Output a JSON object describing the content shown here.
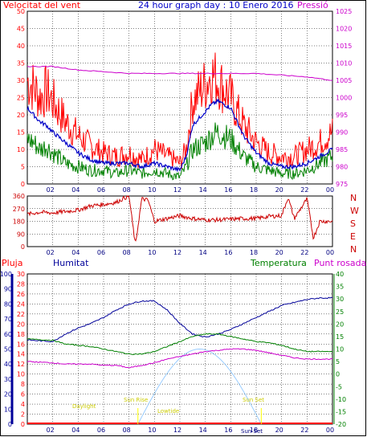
{
  "colors": {
    "background": "#ffffff",
    "frame": "#000000",
    "grid": "#000000",
    "wind_avg": "#0000c8",
    "wind_gust": "#ff0000",
    "wind_speed": "#008000",
    "pressure": "#cc00cc",
    "direction": "#cc0000",
    "humidity": "#000099",
    "temperature": "#008000",
    "dewpoint": "#cc00cc",
    "rain": "#ff0000",
    "sun_curve": "#99ccff",
    "events": "#ffff00",
    "sun_set_label": "#000080"
  },
  "header": {
    "wind_label": "Velocitat del vent",
    "title": "24 hour graph day : 10 Enero 2016",
    "pressure_label": "Pressió"
  },
  "legend2": {
    "rain": "Pluja",
    "humidity": "Humitat",
    "temperature": "Temperatura",
    "dewpoint": "Punt rosada"
  },
  "dir_letters": [
    "N",
    "W",
    "S",
    "E",
    "N"
  ],
  "events": {
    "daylight": "Daylight",
    "sunrise": "Sun Rise",
    "lowtide": "Lowtide",
    "sunset": "Sun Set",
    "sunset2": "Sun Set"
  },
  "chart_data": [
    {
      "type": "line",
      "title": "24 hour graph day : 10 Enero 2016",
      "x_ticks": [
        "02",
        "04",
        "06",
        "08",
        "10",
        "12",
        "14",
        "16",
        "18",
        "20",
        "22",
        "00"
      ],
      "y_left_label": "Velocitat del vent",
      "y_left_ticks": [
        0,
        5,
        10,
        15,
        20,
        25,
        30,
        35,
        40,
        45,
        50
      ],
      "y_left_range": [
        0,
        50
      ],
      "y_right_label": "Pressió",
      "y_right_ticks": [
        975,
        980,
        985,
        990,
        995,
        1000,
        1005,
        1010,
        1015,
        1020,
        1025
      ],
      "y_right_range": [
        975,
        1025
      ],
      "grid": true,
      "series": [
        {
          "key": "gust",
          "axis": "left",
          "x": [
            0,
            0.5,
            1,
            1.5,
            2,
            3,
            4,
            5,
            6,
            7,
            8,
            9,
            10,
            11,
            12,
            12.5,
            13,
            14,
            14.5,
            15,
            16,
            17,
            18,
            19,
            20,
            21,
            22,
            23,
            24
          ],
          "values": [
            30,
            28,
            25,
            27,
            24,
            18,
            14,
            11,
            9,
            8,
            9,
            7,
            10,
            8,
            6,
            10,
            24,
            29,
            32,
            30,
            25,
            17,
            12,
            9,
            8,
            8,
            10,
            12,
            15
          ]
        },
        {
          "key": "average",
          "axis": "left",
          "x": [
            0,
            0.5,
            1,
            1.5,
            2,
            3,
            4,
            5,
            6,
            7,
            8,
            9,
            10,
            11,
            12,
            12.5,
            13,
            14,
            14.5,
            15,
            16,
            17,
            18,
            19,
            20,
            21,
            22,
            23,
            24
          ],
          "values": [
            22,
            20,
            18,
            17,
            15,
            12,
            9,
            7,
            6,
            6,
            6,
            5,
            6,
            5,
            4,
            8,
            17,
            21,
            23,
            24,
            22,
            14,
            9,
            6,
            5,
            5,
            6,
            8,
            10
          ]
        },
        {
          "key": "speed",
          "axis": "left",
          "x": [
            0,
            0.5,
            1,
            1.5,
            2,
            3,
            4,
            5,
            6,
            7,
            8,
            9,
            10,
            11,
            12,
            12.5,
            13,
            14,
            14.5,
            15,
            16,
            17,
            18,
            19,
            20,
            21,
            22,
            23,
            24
          ],
          "values": [
            13,
            12,
            10,
            11,
            9,
            6,
            5,
            4,
            4,
            3,
            4,
            3,
            4,
            3,
            2,
            5,
            10,
            12,
            14,
            15,
            13,
            8,
            5,
            4,
            3,
            3,
            4,
            6,
            8
          ]
        },
        {
          "key": "pressure",
          "axis": "right",
          "x": [
            0,
            2,
            4,
            6,
            8,
            10,
            12,
            14,
            16,
            18,
            20,
            22,
            24
          ],
          "values": [
            1009,
            1009,
            1008,
            1007.5,
            1007,
            1007,
            1007,
            1007,
            1007,
            1007,
            1006.5,
            1006,
            1005
          ]
        }
      ]
    },
    {
      "type": "line",
      "y_ticks": [
        0,
        90,
        180,
        270,
        360
      ],
      "y_range": [
        0,
        360
      ],
      "x_ticks": [
        "02",
        "04",
        "06",
        "08",
        "10",
        "12",
        "14",
        "16",
        "18",
        "20",
        "22",
        "00"
      ],
      "series": [
        {
          "key": "direction",
          "x": [
            0,
            1,
            2,
            3,
            4,
            5,
            6,
            7,
            7.5,
            8,
            8.5,
            9,
            9.5,
            10,
            11,
            12,
            13,
            14,
            15,
            16,
            17,
            18,
            19,
            20,
            20.5,
            21,
            22,
            22.5,
            23,
            24
          ],
          "values": [
            230,
            245,
            240,
            250,
            260,
            290,
            300,
            315,
            340,
            360,
            10,
            340,
            330,
            180,
            200,
            220,
            200,
            190,
            190,
            195,
            200,
            200,
            215,
            220,
            350,
            200,
            340,
            60,
            180,
            180
          ]
        }
      ]
    },
    {
      "type": "line",
      "legend": [
        "Pluja",
        "Humitat",
        "Temperatura",
        "Punt rosada"
      ],
      "y_rain_ticks": [
        0,
        2,
        4,
        6,
        8,
        10,
        12,
        14,
        16,
        18,
        20,
        22,
        24,
        26,
        28,
        30
      ],
      "y_rain_range": [
        0,
        30
      ],
      "y_humidity_ticks": [
        0,
        10,
        20,
        30,
        40,
        50,
        60,
        70,
        80,
        90,
        100
      ],
      "y_humidity_range": [
        0,
        100
      ],
      "y_temp_ticks": [
        -20,
        -15,
        -10,
        -5,
        0,
        5,
        10,
        15,
        20,
        25,
        30,
        35,
        40
      ],
      "y_temp_range": [
        -20,
        40
      ],
      "x_ticks": [
        "02",
        "04",
        "06",
        "08",
        "10",
        "12",
        "14",
        "16",
        "18",
        "20",
        "22",
        "00"
      ],
      "series": [
        {
          "key": "humidity",
          "axis": "humidity",
          "x": [
            0,
            2,
            3,
            4,
            5,
            6,
            7,
            8,
            9,
            10,
            11,
            12,
            13,
            14,
            15,
            16,
            17,
            18,
            19,
            20,
            21,
            22,
            23,
            24
          ],
          "values": [
            56,
            55,
            60,
            64,
            67,
            71,
            76,
            80,
            82,
            82,
            76,
            67,
            60,
            58,
            60,
            63,
            67,
            71,
            75,
            79,
            81,
            83,
            84,
            84
          ]
        },
        {
          "key": "temperature",
          "axis": "temp",
          "x": [
            0,
            2,
            3,
            4,
            5,
            6,
            7,
            8,
            9,
            10,
            11,
            12,
            13,
            14,
            15,
            16,
            17,
            18,
            19,
            20,
            21,
            22,
            23,
            24
          ],
          "values": [
            14,
            13.5,
            12,
            11.5,
            11,
            10,
            9,
            8,
            8,
            9,
            11,
            13,
            15,
            16,
            16,
            15,
            14,
            13,
            12.5,
            11.5,
            10,
            9,
            9,
            9
          ]
        },
        {
          "key": "dewpoint",
          "axis": "temp",
          "x": [
            0,
            2,
            3,
            4,
            5,
            6,
            7,
            8,
            9,
            10,
            11,
            12,
            13,
            14,
            15,
            16,
            17,
            18,
            19,
            20,
            21,
            22,
            23,
            24
          ],
          "values": [
            5,
            4.5,
            4,
            4,
            4,
            3.5,
            3.5,
            2.5,
            3.5,
            4.5,
            6,
            7,
            8,
            9,
            9.5,
            10,
            10,
            9.5,
            8.5,
            7.5,
            6.5,
            6,
            6,
            6
          ]
        },
        {
          "key": "rain",
          "axis": "rain",
          "x": [
            0,
            24
          ],
          "values": [
            0,
            0
          ]
        }
      ],
      "sun_curve": {
        "start_hour": 8.7,
        "end_hour": 18.4,
        "peak_hour": 13.55
      }
    }
  ]
}
